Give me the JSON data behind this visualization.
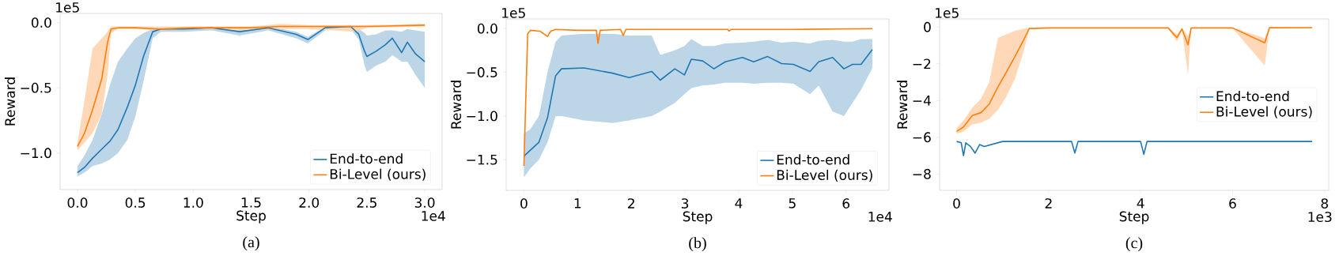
{
  "chart_data": [
    {
      "type": "line",
      "xlabel": "Step",
      "ylabel": "Reward",
      "xlim": [
        -0.15,
        3.15
      ],
      "ylim": [
        -1.28,
        0.07
      ],
      "xticks": [
        {
          "value": 0,
          "label": "0.0"
        },
        0.5,
        {
          "value": 1,
          "label": "1.0"
        },
        1.5,
        {
          "value": 2,
          "label": "2.0"
        },
        2.5,
        {
          "value": 3,
          "label": "3.0"
        }
      ],
      "yticks": [
        {
          "value": 0,
          "label": "0.0"
        },
        {
          "value": -0.5,
          "label": "−0.5"
        },
        {
          "value": -1,
          "label": "−1.0"
        }
      ],
      "legend": "bottom right",
      "annotations": [
        "1e5",
        "1e4",
        "(a)"
      ],
      "series": [
        {
          "name": "End-to-end",
          "color": "#1f77b4",
          "x": [
            0,
            0.06,
            0.13,
            0.21,
            0.28,
            0.35,
            0.43,
            0.5,
            0.57,
            0.65,
            0.72,
            0.92,
            1.16,
            1.4,
            1.65,
            1.89,
            1.99,
            2.14,
            2.36,
            2.43,
            2.48,
            2.5,
            2.58,
            2.66,
            2.72,
            2.8,
            2.85,
            2.92,
            3.0
          ],
          "values": [
            -1.15,
            -1.11,
            -1.04,
            -0.97,
            -0.91,
            -0.82,
            -0.65,
            -0.48,
            -0.26,
            -0.07,
            -0.05,
            -0.05,
            -0.04,
            -0.07,
            -0.04,
            -0.09,
            -0.13,
            -0.04,
            -0.03,
            -0.09,
            -0.22,
            -0.26,
            -0.22,
            -0.17,
            -0.12,
            -0.23,
            -0.15,
            -0.24,
            -0.3
          ],
          "upper": [
            -1.1,
            -1.02,
            -0.9,
            -0.7,
            -0.48,
            -0.3,
            -0.2,
            -0.12,
            -0.08,
            -0.05,
            -0.04,
            -0.04,
            -0.03,
            -0.05,
            -0.03,
            -0.07,
            -0.11,
            -0.03,
            -0.02,
            -0.05,
            -0.08,
            -0.1,
            -0.09,
            -0.06,
            -0.06,
            -0.07,
            -0.05,
            -0.06,
            -0.07
          ],
          "lower": [
            -1.18,
            -1.15,
            -1.1,
            -1.08,
            -1.05,
            -1.0,
            -0.9,
            -0.72,
            -0.45,
            -0.12,
            -0.07,
            -0.07,
            -0.06,
            -0.1,
            -0.06,
            -0.12,
            -0.16,
            -0.06,
            -0.05,
            -0.13,
            -0.33,
            -0.38,
            -0.33,
            -0.3,
            -0.25,
            -0.3,
            -0.3,
            -0.4,
            -0.5
          ]
        },
        {
          "name": "Bi-Level (ours)",
          "color": "#ff7f0e",
          "x": [
            0,
            0.06,
            0.13,
            0.21,
            0.26,
            0.29,
            0.35,
            0.5,
            0.7,
            1.0,
            1.5,
            1.75,
            2.0,
            2.4,
            2.5,
            3.0
          ],
          "values": [
            -0.95,
            -0.85,
            -0.67,
            -0.43,
            -0.15,
            -0.05,
            -0.04,
            -0.04,
            -0.05,
            -0.04,
            -0.04,
            -0.03,
            -0.03,
            -0.03,
            -0.03,
            -0.02
          ],
          "upper": [
            -0.92,
            -0.6,
            -0.2,
            -0.12,
            -0.07,
            -0.03,
            -0.03,
            -0.03,
            -0.03,
            -0.03,
            -0.03,
            -0.01,
            -0.02,
            -0.02,
            -0.02,
            -0.01
          ],
          "lower": [
            -0.98,
            -0.92,
            -0.85,
            -0.7,
            -0.4,
            -0.08,
            -0.05,
            -0.05,
            -0.06,
            -0.05,
            -0.06,
            -0.05,
            -0.05,
            -0.07,
            -0.04,
            -0.03
          ]
        }
      ]
    },
    {
      "type": "line",
      "xlabel": "Step",
      "ylabel": "Reward",
      "xlim": [
        -0.33,
        6.8
      ],
      "ylim": [
        -1.85,
        0.11
      ],
      "xticks": [
        0,
        1,
        2,
        3,
        4,
        5,
        6
      ],
      "yticks": [
        {
          "value": 0,
          "label": "0.0"
        },
        {
          "value": -0.5,
          "label": "−0.5"
        },
        {
          "value": -1,
          "label": "−1.0"
        },
        {
          "value": -1.5,
          "label": "−1.5"
        }
      ],
      "legend": "bottom right",
      "annotations": [
        "1e5",
        "1e4",
        "(b)"
      ],
      "series": [
        {
          "name": "End-to-end",
          "color": "#1f77b4",
          "x": [
            0,
            0.12,
            0.28,
            0.44,
            0.59,
            0.7,
            1.12,
            1.65,
            1.96,
            2.38,
            2.54,
            2.81,
            2.99,
            3.12,
            3.33,
            3.54,
            3.75,
            4.07,
            4.28,
            4.54,
            4.8,
            5.02,
            5.33,
            5.49,
            5.75,
            5.96,
            6.12,
            6.28,
            6.49
          ],
          "values": [
            -1.46,
            -1.39,
            -1.3,
            -1.02,
            -0.54,
            -0.46,
            -0.45,
            -0.51,
            -0.56,
            -0.49,
            -0.59,
            -0.46,
            -0.53,
            -0.35,
            -0.37,
            -0.46,
            -0.38,
            -0.33,
            -0.38,
            -0.32,
            -0.4,
            -0.41,
            -0.49,
            -0.38,
            -0.33,
            -0.46,
            -0.41,
            -0.41,
            -0.24
          ],
          "upper": [
            -1.2,
            -1.15,
            -1.0,
            -0.5,
            -0.15,
            -0.08,
            -0.06,
            -0.06,
            -0.08,
            -0.08,
            -0.3,
            -0.25,
            -0.2,
            -0.12,
            -0.2,
            -0.2,
            -0.17,
            -0.16,
            -0.15,
            -0.13,
            -0.16,
            -0.15,
            -0.17,
            -0.14,
            -0.13,
            -0.15,
            -0.15,
            -0.12,
            -0.12
          ],
          "lower": [
            -1.7,
            -1.6,
            -1.5,
            -1.3,
            -1.0,
            -1.0,
            -1.05,
            -1.08,
            -1.05,
            -1.0,
            -0.95,
            -0.85,
            -0.75,
            -0.68,
            -0.65,
            -0.64,
            -0.62,
            -0.62,
            -0.63,
            -0.62,
            -0.62,
            -0.63,
            -0.75,
            -0.65,
            -0.95,
            -1.0,
            -0.85,
            -0.7,
            -0.45
          ]
        },
        {
          "name": "Bi-Level (ours)",
          "color": "#ff7f0e",
          "x": [
            0,
            0.07,
            0.12,
            0.3,
            0.44,
            0.5,
            0.59,
            1.0,
            1.35,
            1.38,
            1.42,
            1.8,
            1.85,
            1.9,
            2.5,
            3.8,
            3.82,
            3.86,
            5.0,
            6.49
          ],
          "values": [
            -1.57,
            -0.06,
            -0.02,
            -0.03,
            -0.09,
            -0.03,
            -0.01,
            -0.02,
            -0.02,
            -0.17,
            -0.02,
            -0.01,
            -0.08,
            -0.01,
            -0.01,
            -0.01,
            -0.03,
            -0.01,
            -0.01,
            0.0
          ]
        }
      ]
    },
    {
      "type": "line",
      "xlabel": "Step",
      "ylabel": "Reward",
      "xlim": [
        -0.37,
        8.09
      ],
      "ylim": [
        -8.89,
        0.44
      ],
      "xticks": [
        0,
        2,
        4,
        6,
        8
      ],
      "yticks": [
        0,
        {
          "value": -2,
          "label": "−2"
        },
        {
          "value": -4,
          "label": "−4"
        },
        {
          "value": -6,
          "label": "−6"
        },
        {
          "value": -8,
          "label": "−8"
        }
      ],
      "legend": "right",
      "annotations": [
        "1e5",
        "1e3",
        "(c)"
      ],
      "series": [
        {
          "name": "End-to-end",
          "color": "#1f77b4",
          "x": [
            0,
            0.1,
            0.15,
            0.2,
            0.3,
            0.4,
            0.5,
            0.6,
            1.0,
            2.5,
            2.57,
            2.64,
            4.0,
            4.07,
            4.14,
            6.0,
            7.73
          ],
          "values": [
            -6.23,
            -6.3,
            -7.0,
            -6.3,
            -6.5,
            -6.86,
            -6.4,
            -6.5,
            -6.23,
            -6.23,
            -6.86,
            -6.23,
            -6.23,
            -6.93,
            -6.23,
            -6.23,
            -6.23
          ]
        },
        {
          "name": "Bi-Level (ours)",
          "color": "#ff7f0e",
          "x": [
            0,
            0.15,
            0.34,
            0.53,
            0.71,
            0.9,
            1.08,
            1.27,
            1.45,
            1.58,
            2.0,
            3.0,
            4.6,
            4.79,
            4.9,
            5.03,
            5.1,
            6.0,
            6.7,
            6.8,
            7.73
          ],
          "values": [
            -5.68,
            -5.44,
            -4.82,
            -4.66,
            -4.19,
            -3.25,
            -2.46,
            -1.6,
            -0.74,
            -0.08,
            -0.05,
            -0.05,
            -0.05,
            -0.58,
            -0.1,
            -0.97,
            -0.05,
            -0.05,
            -0.86,
            -0.04,
            -0.03
          ],
          "upper": [
            -5.5,
            -5.1,
            -4.4,
            -3.9,
            -3.0,
            -0.58,
            -0.4,
            -0.2,
            -0.1,
            -0.05,
            -0.03,
            -0.03,
            -0.03,
            -0.4,
            -0.07,
            -0.5,
            -0.03,
            -0.03,
            -0.6,
            -0.02,
            -0.01
          ],
          "lower": [
            -5.8,
            -5.7,
            -5.3,
            -5.2,
            -5.0,
            -4.5,
            -3.8,
            -2.8,
            -1.4,
            -0.12,
            -0.07,
            -0.07,
            -0.07,
            -0.8,
            -0.15,
            -2.6,
            -0.07,
            -0.07,
            -2.1,
            -0.06,
            -0.05
          ]
        }
      ]
    }
  ]
}
